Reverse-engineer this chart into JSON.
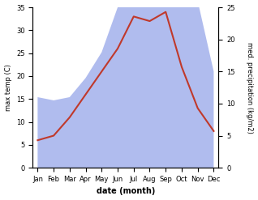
{
  "months": [
    "Jan",
    "Feb",
    "Mar",
    "Apr",
    "May",
    "Jun",
    "Jul",
    "Aug",
    "Sep",
    "Oct",
    "Nov",
    "Dec"
  ],
  "temp": [
    6,
    7,
    11,
    16,
    21,
    26,
    33,
    32,
    34,
    22,
    13,
    8
  ],
  "precip": [
    11,
    10.5,
    11,
    14,
    18,
    25,
    32,
    33,
    33,
    26,
    26,
    15
  ],
  "temp_color": "#c0392b",
  "precip_color": "#b0bcee",
  "temp_ylim": [
    0,
    35
  ],
  "precip_ylim": [
    0,
    25
  ],
  "temp_yticks": [
    0,
    5,
    10,
    15,
    20,
    25,
    30,
    35
  ],
  "precip_yticks": [
    0,
    5,
    10,
    15,
    20,
    25
  ],
  "ylabel_left": "max temp (C)",
  "ylabel_right": "med. precipitation (kg/m2)",
  "xlabel": "date (month)",
  "background_color": "#ffffff"
}
